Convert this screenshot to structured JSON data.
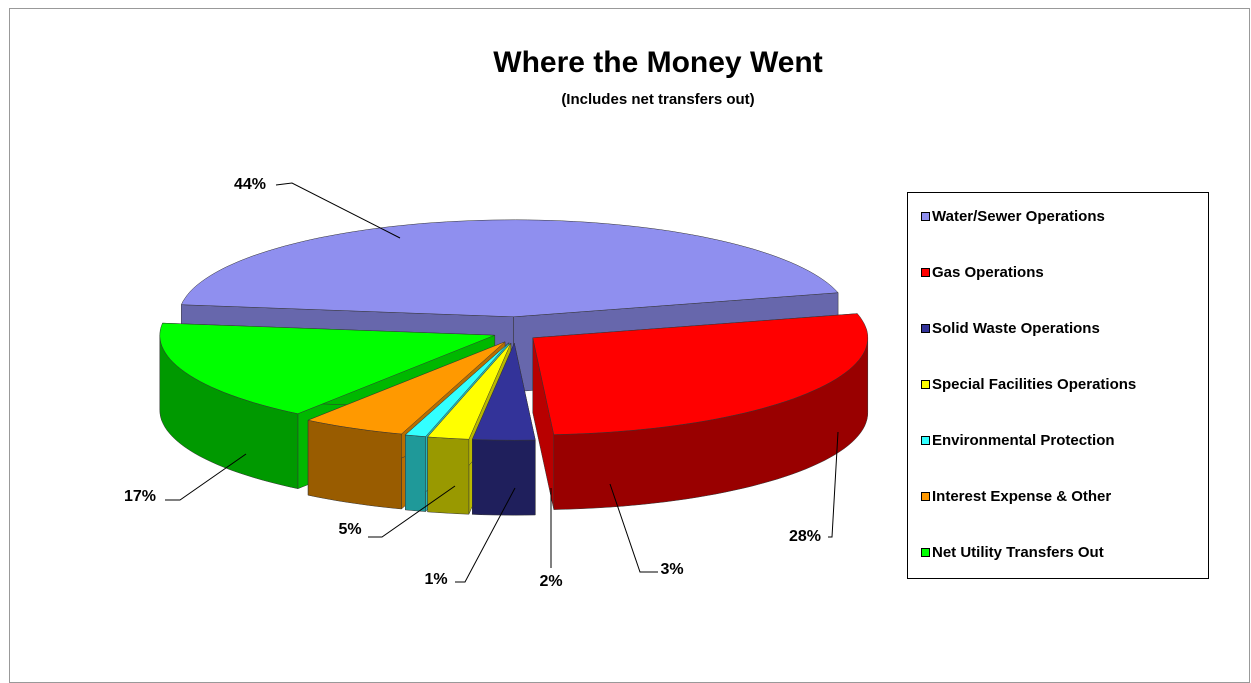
{
  "chart_data": {
    "type": "pie",
    "title": "Where the Money Went",
    "subtitle": "(Includes net transfers out)",
    "categories": [
      "Water/Sewer Operations",
      "Gas Operations",
      "Solid Waste Operations",
      "Special Facilities Operations",
      "Environmental Protection",
      "Interest Expense & Other",
      "Net Utility Transfers Out"
    ],
    "values": [
      44,
      28,
      3,
      2,
      1,
      5,
      17
    ],
    "value_labels": [
      "44%",
      "28%",
      "3%",
      "2%",
      "1%",
      "5%",
      "17%"
    ],
    "colors": [
      "#8f8fef",
      "#ff0000",
      "#333399",
      "#ffff00",
      "#33ffff",
      "#ff9900",
      "#00ff00"
    ],
    "legend": "right"
  }
}
